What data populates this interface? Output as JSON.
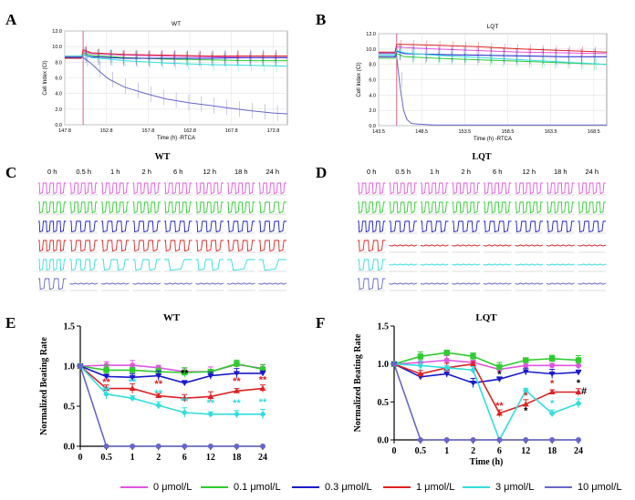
{
  "panel_letters": {
    "A": "A",
    "B": "B",
    "C": "C",
    "D": "D",
    "E": "E",
    "F": "F"
  },
  "colors": {
    "c0": "#e055e0",
    "c01": "#2ecc2e",
    "c03": "#1a1acc",
    "c1": "#dd2222",
    "c3": "#33dddd",
    "c10": "#6666cc"
  },
  "legend": [
    {
      "label": "0 μmol/L",
      "color": "#e055e0"
    },
    {
      "label": "0.1 μmol/L",
      "color": "#2ecc2e"
    },
    {
      "label": "0.3 μmol/L",
      "color": "#1a1acc"
    },
    {
      "label": "1 μmol/L",
      "color": "#dd2222"
    },
    {
      "label": "3 μmol/L",
      "color": "#33dddd"
    },
    {
      "label": "10 μmol/L",
      "color": "#6666cc"
    }
  ],
  "chart_data": [
    {
      "id": "A",
      "type": "line",
      "title": "WT",
      "xlabel": "Time (h) -RTCA",
      "ylabel": "Cell Index (CI)",
      "xlim": [
        147.8,
        174.5
      ],
      "ylim": [
        0,
        12
      ],
      "x_ticks": [
        "147.8",
        "152.8",
        "157.8",
        "162.8",
        "167.8",
        "172.8"
      ],
      "y_ticks": [
        "0.0",
        "2.0",
        "4.0",
        "6.0",
        "8.0",
        "10.0",
        "12.0"
      ],
      "marker_x": 150.0,
      "series": [
        {
          "name": "0 μmol/L",
          "color": "#e055e0",
          "x": [
            147.8,
            149.8,
            150.0,
            151.0,
            155.0,
            160.0,
            165.0,
            170.0,
            174.5
          ],
          "y": [
            8.6,
            8.6,
            9.4,
            9.1,
            8.9,
            8.8,
            8.7,
            8.6,
            8.6
          ]
        },
        {
          "name": "0.1 μmol/L",
          "color": "#2ecc2e",
          "x": [
            147.8,
            149.8,
            150.0,
            151.0,
            155.0,
            160.0,
            165.0,
            170.0,
            174.5
          ],
          "y": [
            8.7,
            8.7,
            9.2,
            8.9,
            8.6,
            8.4,
            8.3,
            8.2,
            8.2
          ]
        },
        {
          "name": "0.3 μmol/L",
          "color": "#1a1acc",
          "x": [
            147.8,
            149.8,
            150.0,
            151.0,
            155.0,
            160.0,
            165.0,
            170.0,
            174.5
          ],
          "y": [
            8.6,
            8.6,
            9.0,
            8.7,
            8.5,
            8.5,
            8.5,
            8.6,
            8.6
          ]
        },
        {
          "name": "1 μmol/L",
          "color": "#dd2222",
          "x": [
            147.8,
            149.8,
            150.0,
            151.0,
            155.0,
            160.0,
            165.0,
            170.0,
            174.5
          ],
          "y": [
            8.5,
            8.5,
            9.6,
            9.2,
            9.0,
            8.9,
            8.8,
            8.8,
            8.8
          ]
        },
        {
          "name": "3 μmol/L",
          "color": "#33dddd",
          "x": [
            147.8,
            149.8,
            150.0,
            151.0,
            155.0,
            160.0,
            165.0,
            170.0,
            174.5
          ],
          "y": [
            8.8,
            8.8,
            9.0,
            8.6,
            8.2,
            7.9,
            7.7,
            7.6,
            7.5
          ]
        },
        {
          "name": "10 μmol/L",
          "color": "#6666cc",
          "x": [
            147.8,
            149.8,
            150.0,
            151.0,
            152.0,
            153.0,
            155.0,
            157.8,
            160.0,
            162.8,
            165.0,
            167.8,
            170.0,
            172.8,
            174.5
          ],
          "y": [
            8.7,
            8.7,
            8.6,
            7.8,
            6.8,
            5.9,
            4.8,
            3.9,
            3.3,
            2.8,
            2.5,
            2.1,
            1.8,
            1.5,
            1.4
          ]
        }
      ]
    },
    {
      "id": "B",
      "type": "line",
      "title": "LQT",
      "xlabel": "Time (h) -RTCA",
      "ylabel": "Cell Index (CI)",
      "xlim": [
        143.5,
        170.0
      ],
      "ylim": [
        0,
        12
      ],
      "x_ticks": [
        "143.5",
        "148.5",
        "153.5",
        "158.5",
        "163.5",
        "168.5"
      ],
      "y_ticks": [
        "0.0",
        "2.0",
        "4.0",
        "6.0",
        "8.0",
        "10.0",
        "12.0"
      ],
      "marker_x": 145.6,
      "series": [
        {
          "name": "0 μmol/L",
          "color": "#e055e0",
          "x": [
            143.5,
            145.4,
            145.6,
            146.5,
            150.0,
            155.0,
            160.0,
            165.0,
            170.0
          ],
          "y": [
            9.5,
            9.5,
            10.3,
            10.2,
            10.0,
            9.8,
            9.6,
            9.5,
            9.4
          ]
        },
        {
          "name": "0.1 μmol/L",
          "color": "#2ecc2e",
          "x": [
            143.5,
            145.4,
            145.6,
            146.5,
            150.0,
            155.0,
            160.0,
            165.0,
            170.0
          ],
          "y": [
            8.8,
            8.8,
            9.4,
            9.0,
            8.8,
            8.6,
            8.4,
            8.2,
            8.0
          ]
        },
        {
          "name": "0.3 μmol/L",
          "color": "#1a1acc",
          "x": [
            143.5,
            145.4,
            145.6,
            146.5,
            150.0,
            155.0,
            160.0,
            165.0,
            170.0
          ],
          "y": [
            9.0,
            9.0,
            9.7,
            9.4,
            9.3,
            9.2,
            9.1,
            9.0,
            9.0
          ]
        },
        {
          "name": "1 μmol/L",
          "color": "#dd2222",
          "x": [
            143.5,
            145.4,
            145.6,
            146.5,
            150.0,
            155.0,
            160.0,
            165.0,
            170.0
          ],
          "y": [
            9.6,
            9.6,
            10.6,
            10.6,
            10.5,
            10.3,
            10.0,
            9.8,
            9.6
          ]
        },
        {
          "name": "3 μmol/L",
          "color": "#33dddd",
          "x": [
            143.5,
            145.4,
            145.6,
            146.5,
            150.0,
            155.0,
            160.0,
            165.0,
            170.0
          ],
          "y": [
            9.2,
            9.2,
            9.8,
            9.5,
            9.2,
            8.9,
            8.6,
            8.3,
            8.0
          ]
        },
        {
          "name": "10 μmol/L",
          "color": "#6666cc",
          "x": [
            143.5,
            145.4,
            145.6,
            146.0,
            146.4,
            146.8,
            147.3,
            148.0,
            150.0,
            160.0,
            170.0
          ],
          "y": [
            9.4,
            9.4,
            9.0,
            5.0,
            2.0,
            0.8,
            0.3,
            0.2,
            0.1,
            0.1,
            0.1
          ]
        }
      ]
    },
    {
      "id": "E",
      "type": "line",
      "title": "WT",
      "xlabel": "",
      "ylabel": "Normalized Beating Rate",
      "categories": [
        "0",
        "0.5",
        "1",
        "2",
        "6",
        "12",
        "18",
        "24"
      ],
      "ylim": [
        0,
        1.5
      ],
      "y_ticks": [
        "0.0",
        "0.5",
        "1.0",
        "1.5"
      ],
      "series": [
        {
          "name": "0 μmol/L",
          "color": "#e055e0",
          "values": [
            1.0,
            1.01,
            1.01,
            0.98,
            0.93,
            0.93,
            1.02,
            0.97
          ]
        },
        {
          "name": "0.1 μmol/L",
          "color": "#2ecc2e",
          "values": [
            1.0,
            0.95,
            0.95,
            0.93,
            0.92,
            0.93,
            1.03,
            0.96
          ]
        },
        {
          "name": "0.3 μmol/L",
          "color": "#1a1acc",
          "values": [
            1.0,
            0.87,
            0.86,
            0.88,
            0.79,
            0.88,
            0.91,
            0.91
          ]
        },
        {
          "name": "1 μmol/L",
          "color": "#dd2222",
          "values": [
            1.0,
            0.72,
            0.72,
            0.63,
            0.6,
            0.62,
            0.69,
            0.72
          ]
        },
        {
          "name": "3 μmol/L",
          "color": "#33dddd",
          "values": [
            1.0,
            0.65,
            0.6,
            0.51,
            0.42,
            0.4,
            0.4,
            0.4
          ]
        },
        {
          "name": "10 μmol/L",
          "color": "#6666cc",
          "values": [
            1.0,
            0.0,
            0.0,
            0.0,
            0.0,
            0.0,
            0.0,
            0.0
          ]
        }
      ],
      "annotations": [
        {
          "text": "**",
          "x": "0.5",
          "y": 0.76,
          "color": "#dd2222"
        },
        {
          "text": "**",
          "x": "0.5",
          "y": 0.66,
          "color": "#33dddd"
        },
        {
          "text": "**",
          "x": "1",
          "y": 0.76,
          "color": "#33dddd"
        },
        {
          "text": "**",
          "x": "2",
          "y": 0.74,
          "color": "#dd2222"
        },
        {
          "text": "**",
          "x": "2",
          "y": 0.62,
          "color": "#33dddd"
        },
        {
          "text": "**",
          "x": "6",
          "y": 0.87,
          "color": "#000000"
        },
        {
          "text": "**",
          "x": "6",
          "y": 0.52,
          "color": "#33dddd"
        },
        {
          "text": "**",
          "x": "12",
          "y": 0.5,
          "color": "#33dddd"
        },
        {
          "text": "**",
          "x": "18",
          "y": 0.77,
          "color": "#dd2222"
        },
        {
          "text": "**",
          "x": "18",
          "y": 0.5,
          "color": "#33dddd"
        },
        {
          "text": "**",
          "x": "24",
          "y": 0.79,
          "color": "#dd2222"
        },
        {
          "text": "**",
          "x": "24",
          "y": 0.51,
          "color": "#33dddd"
        }
      ]
    },
    {
      "id": "F",
      "type": "line",
      "title": "LQT",
      "xlabel": "Time (h)",
      "ylabel": "Normalized Beating Rate",
      "categories": [
        "0",
        "0.5",
        "1",
        "2",
        "6",
        "12",
        "18",
        "24"
      ],
      "ylim": [
        0,
        1.5
      ],
      "y_ticks": [
        "0.0",
        "0.5",
        "1.0",
        "1.5"
      ],
      "series": [
        {
          "name": "0 μmol/L",
          "color": "#e055e0",
          "values": [
            1.0,
            1.02,
            1.05,
            1.02,
            0.93,
            0.98,
            0.98,
            0.98
          ]
        },
        {
          "name": "0.1 μmol/L",
          "color": "#2ecc2e",
          "values": [
            1.0,
            1.1,
            1.15,
            1.1,
            0.96,
            1.05,
            1.07,
            1.05
          ]
        },
        {
          "name": "0.3 μmol/L",
          "color": "#1a1acc",
          "values": [
            1.0,
            0.83,
            0.87,
            0.75,
            0.8,
            0.9,
            0.87,
            0.89
          ]
        },
        {
          "name": "1 μmol/L",
          "color": "#dd2222",
          "values": [
            1.0,
            0.87,
            0.95,
            1.0,
            0.35,
            0.47,
            0.63,
            0.63
          ]
        },
        {
          "name": "3 μmol/L",
          "color": "#33dddd",
          "values": [
            1.0,
            0.98,
            0.95,
            0.92,
            0.0,
            0.65,
            0.35,
            0.48
          ]
        },
        {
          "name": "10 μmol/L",
          "color": "#6666cc",
          "values": [
            1.0,
            0.0,
            0.0,
            0.0,
            0.0,
            0.0,
            0.0,
            0.0
          ]
        }
      ],
      "annotations": [
        {
          "text": "**",
          "x": "6",
          "y": 0.41,
          "color": "#dd2222"
        },
        {
          "text": "*",
          "x": "6",
          "y": 0.82,
          "color": "#000000"
        },
        {
          "text": "*",
          "x": "12",
          "y": 0.54,
          "color": "#dd2222"
        },
        {
          "text": "*",
          "x": "12",
          "y": 0.34,
          "color": "#000000"
        },
        {
          "text": "*",
          "x": "18",
          "y": 0.7,
          "color": "#dd2222"
        },
        {
          "text": "*",
          "x": "18",
          "y": 0.44,
          "color": "#33dddd"
        },
        {
          "text": "#",
          "x": "24",
          "y": 0.6,
          "color": "#000000"
        },
        {
          "text": "*",
          "x": "24",
          "y": 0.71,
          "color": "#000000"
        }
      ]
    }
  ],
  "traces": [
    {
      "id": "C",
      "title": "WT",
      "time_labels": [
        "0 h",
        "0.5 h",
        "1 h",
        "2 h",
        "6 h",
        "12 h",
        "18 h",
        "24 h"
      ],
      "rows": [
        {
          "color": "#e055e0",
          "beats": [
            4,
            4,
            4,
            4,
            4,
            4,
            4,
            4
          ]
        },
        {
          "color": "#2ecc2e",
          "beats": [
            4,
            4,
            4,
            4,
            4,
            4,
            4,
            3
          ]
        },
        {
          "color": "#1a1acc",
          "beats": [
            4,
            3,
            3,
            3,
            3,
            3,
            3,
            3
          ]
        },
        {
          "color": "#dd2222",
          "beats": [
            4,
            3,
            3,
            3,
            3,
            3,
            3,
            3
          ]
        },
        {
          "color": "#33dddd",
          "beats": [
            4,
            3,
            2,
            2,
            1,
            2,
            1,
            1
          ]
        },
        {
          "color": "#6666cc",
          "beats": [
            3,
            0,
            0,
            0,
            0,
            0,
            0,
            0
          ]
        }
      ]
    },
    {
      "id": "D",
      "title": "LQT",
      "time_labels": [
        "0 h",
        "0.5 h",
        "1 h",
        "2 h",
        "6 h",
        "12 h",
        "18 h",
        "24 h"
      ],
      "rows": [
        {
          "color": "#e055e0",
          "beats": [
            4,
            4,
            4,
            4,
            4,
            4,
            4,
            4
          ]
        },
        {
          "color": "#2ecc2e",
          "beats": [
            4,
            4,
            4,
            4,
            4,
            4,
            4,
            4
          ]
        },
        {
          "color": "#1a1acc",
          "beats": [
            4,
            3,
            3,
            3,
            3,
            3,
            3,
            3
          ]
        },
        {
          "color": "#dd2222",
          "beats": [
            3,
            0,
            0,
            0,
            0,
            0,
            0,
            0
          ]
        },
        {
          "color": "#33dddd",
          "beats": [
            3,
            0,
            0,
            0,
            0,
            0,
            0,
            0
          ]
        },
        {
          "color": "#6666cc",
          "beats": [
            3,
            0,
            0,
            0,
            0,
            0,
            0,
            0
          ]
        }
      ]
    }
  ]
}
